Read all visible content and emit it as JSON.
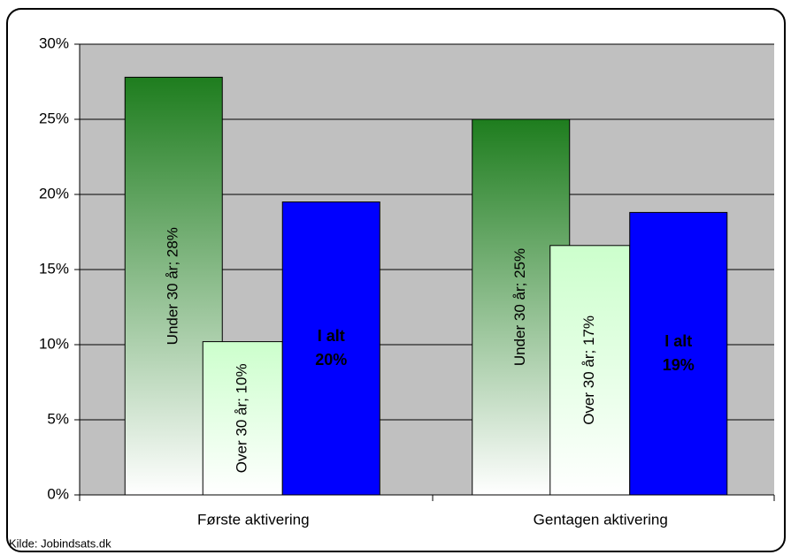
{
  "chart_data": {
    "type": "bar",
    "categories": [
      "Første aktivering",
      "Gentagen aktivering"
    ],
    "series": [
      {
        "name": "Under 30 år",
        "color": "#1e7d1e",
        "values": [
          27.8,
          25.0
        ],
        "value_labels": [
          "Under 30 år; 28%",
          "Under 30 år; 25%"
        ]
      },
      {
        "name": "Over 30 år",
        "color": "#ccffcc",
        "values": [
          10.2,
          16.6
        ],
        "value_labels": [
          "Over 30 år; 10%",
          "Over 30 år; 17%"
        ]
      },
      {
        "name": "I alt",
        "color": "#0000ff",
        "values": [
          19.5,
          18.8
        ],
        "value_labels": [
          "I alt\n20%",
          "I alt\n19%"
        ]
      }
    ],
    "ylim": [
      0,
      30
    ],
    "yticks": [
      {
        "value": 0,
        "label": "0%"
      },
      {
        "value": 5,
        "label": "5%"
      },
      {
        "value": 10,
        "label": "10%"
      },
      {
        "value": 15,
        "label": "15%"
      },
      {
        "value": 20,
        "label": "20%"
      },
      {
        "value": 25,
        "label": "25%"
      },
      {
        "value": 30,
        "label": "30%"
      }
    ],
    "grid": true,
    "source": "Kilde: Jobindsats.dk"
  }
}
